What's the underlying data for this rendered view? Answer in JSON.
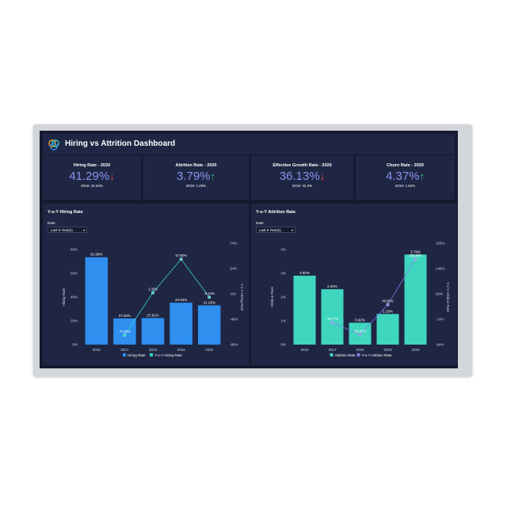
{
  "header": {
    "title": "Hiring vs Attrition Dashboard"
  },
  "kpis": [
    {
      "label": "Hiring Rate - 2020",
      "value": "41.29%",
      "trend": "down",
      "sub": "2019: 44.04%"
    },
    {
      "label": "Attrition Rate - 2020",
      "value": "3.79%",
      "trend": "up",
      "sub": "2019: 1.29%"
    },
    {
      "label": "Effective Growth Rate - 2020",
      "value": "36.13%",
      "trend": "down",
      "sub": "2019: 42.2%"
    },
    {
      "label": "Churn Rate - 2020",
      "value": "4.37%",
      "trend": "up",
      "sub": "2019: 1.52%"
    }
  ],
  "arrows": {
    "down": "↓",
    "up": "↑"
  },
  "hiring_panel": {
    "title": "Y-o-Y Hiring Rate",
    "date_label": "Date:",
    "date_value": "Last 5 Year(s)"
  },
  "attrition_panel": {
    "title": "Y-o-Y Attrition Rate",
    "date_label": "Date:",
    "date_value": "Last 5 Year(s)"
  },
  "colors": {
    "hiring_bar": "#2e8fef",
    "hiring_line": "#36d1c4",
    "attrition_bar": "#3fd6bf",
    "attrition_line": "#7b7fe8",
    "kpi_value": "#8b93ef"
  },
  "chart_data": [
    {
      "type": "bar",
      "title": "Y-o-Y Hiring Rate",
      "categories": [
        "2016",
        "2017",
        "2018",
        "2019",
        "2020"
      ],
      "ylabel": "Hiring Rate",
      "y2label": "Y-o-Y Hiring Rate",
      "ylim": [
        0,
        100
      ],
      "y_ticks": [
        "0%",
        "20%",
        "40%",
        "60%",
        "80%"
      ],
      "y2lim": [
        -86,
        74
      ],
      "y2_ticks": [
        "-86%",
        "-46%",
        "-6%",
        "34%",
        "74%"
      ],
      "series": [
        {
          "name": "Hiring Rate",
          "type": "bar",
          "values": [
            91.89,
            27.54,
            27.91,
            44.04,
            41.29
          ],
          "labels": [
            "91.89%",
            "27.54%",
            "27.91%",
            "44.04%",
            "41.29%"
          ]
        },
        {
          "name": "Y-o-Y Hiring Rate",
          "type": "line",
          "values": [
            null,
            -70.03,
            1.35,
            57.8,
            -6.24
          ],
          "labels": [
            "",
            "-70.03%",
            "1.35%",
            "57.80%",
            "-6.24%"
          ]
        }
      ],
      "legend": "bottom"
    },
    {
      "type": "bar",
      "title": "Y-o-Y Attrition Rate",
      "categories": [
        "2016",
        "2017",
        "2018",
        "2019",
        "2020"
      ],
      "ylabel": "Attrition Rate",
      "y2label": "Y-o-Y Attrition Rate",
      "ylim": [
        0,
        4
      ],
      "y_ticks": [
        "0%",
        "1%",
        "2%",
        "3%",
        "4%"
      ],
      "y2lim": [
        -94,
        226
      ],
      "y2_ticks": [
        "-94%",
        "-14%",
        "66%",
        "146%",
        "226%"
      ],
      "series": [
        {
          "name": "Attrition Rate",
          "type": "bar",
          "values": [
            2.9,
            2.33,
            0.92,
            1.29,
            3.79
          ],
          "labels": [
            "2.90%",
            "2.33%",
            "0.92%",
            "1.29%",
            "3.79%"
          ]
        },
        {
          "name": "Y-o-Y Attrition Rate",
          "type": "line",
          "values": [
            null,
            -19.77,
            -60.55,
            40.6,
            193.8
          ],
          "labels": [
            "",
            "-19.77%",
            "-60.55%",
            "40.60%",
            "193.80%"
          ]
        }
      ],
      "legend": "bottom"
    }
  ]
}
